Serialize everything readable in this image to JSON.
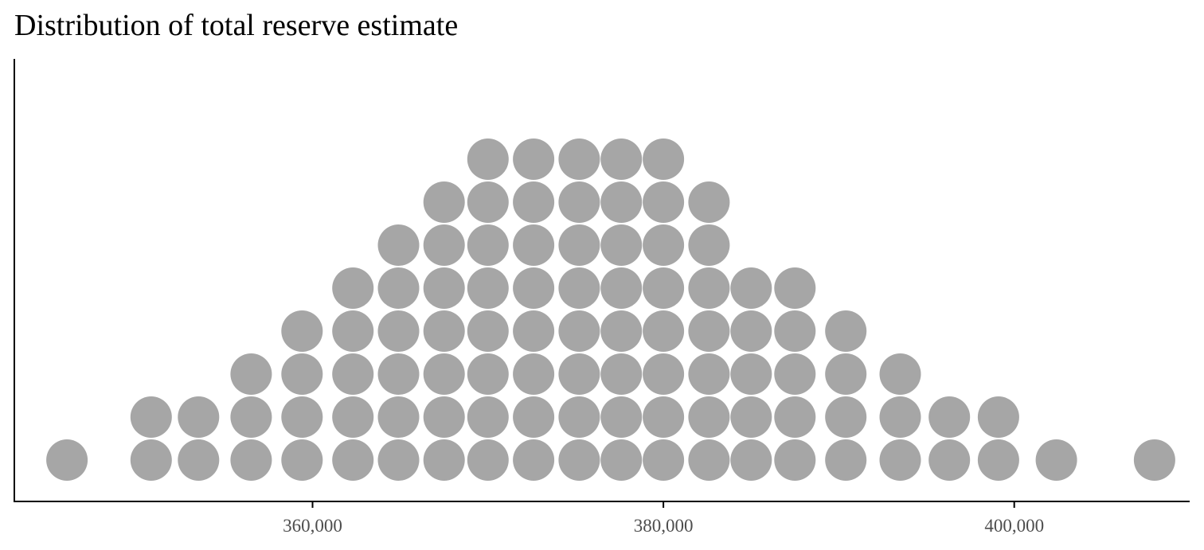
{
  "chart_data": {
    "type": "dotplot",
    "title": "Distribution of total reserve estimate",
    "xlabel": "",
    "ylabel": "",
    "xlim": [
      343000,
      410000
    ],
    "x_ticks": [
      360000,
      380000,
      400000
    ],
    "x_tick_labels": [
      "360,000",
      "380,000",
      "400,000"
    ],
    "grid": false,
    "legend": "none",
    "dot_color": "#a6a6a6",
    "axis_color": "#000000",
    "bins": [
      {
        "x": 346000,
        "count": 1
      },
      {
        "x": 350800,
        "count": 2
      },
      {
        "x": 353500,
        "count": 2
      },
      {
        "x": 356500,
        "count": 3
      },
      {
        "x": 359400,
        "count": 4
      },
      {
        "x": 362300,
        "count": 5
      },
      {
        "x": 364900,
        "count": 6
      },
      {
        "x": 367500,
        "count": 7
      },
      {
        "x": 370000,
        "count": 8
      },
      {
        "x": 372600,
        "count": 8
      },
      {
        "x": 375200,
        "count": 8
      },
      {
        "x": 377600,
        "count": 8
      },
      {
        "x": 380000,
        "count": 8
      },
      {
        "x": 382600,
        "count": 7
      },
      {
        "x": 385000,
        "count": 5
      },
      {
        "x": 387500,
        "count": 5
      },
      {
        "x": 390400,
        "count": 4
      },
      {
        "x": 393500,
        "count": 3
      },
      {
        "x": 396300,
        "count": 2
      },
      {
        "x": 399100,
        "count": 2
      },
      {
        "x": 402400,
        "count": 1
      },
      {
        "x": 408000,
        "count": 1
      }
    ]
  }
}
